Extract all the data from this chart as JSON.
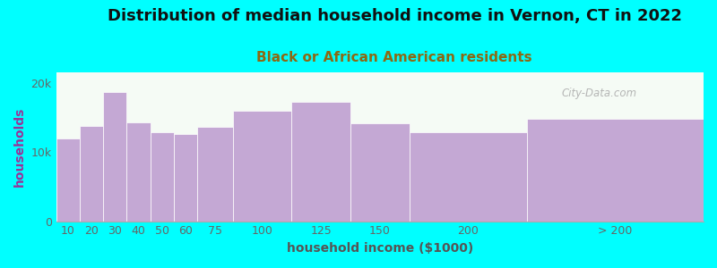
{
  "title": "Distribution of median household income in Vernon, CT in 2022",
  "subtitle": "Black or African American residents",
  "xlabel": "household income ($1000)",
  "ylabel": "households",
  "background_color": "#00FFFF",
  "bar_color": "#C4A8D4",
  "categories": [
    "10",
    "20",
    "30",
    "40",
    "50",
    "60",
    "75",
    "100",
    "125",
    "150",
    "200",
    "> 200"
  ],
  "left_edges": [
    0,
    10,
    20,
    30,
    40,
    50,
    60,
    75,
    100,
    125,
    150,
    200
  ],
  "widths": [
    10,
    10,
    10,
    10,
    10,
    10,
    15,
    25,
    25,
    25,
    50,
    75
  ],
  "values": [
    12000,
    13800,
    18700,
    14300,
    12800,
    12600,
    13600,
    16000,
    17200,
    14200,
    12900,
    14800
  ],
  "yticks": [
    0,
    10000,
    20000
  ],
  "ytick_labels": [
    "0",
    "10k",
    "20k"
  ],
  "ylim": [
    0,
    21500
  ],
  "xlim": [
    0,
    275
  ],
  "title_fontsize": 13,
  "subtitle_fontsize": 11,
  "axis_label_fontsize": 10,
  "tick_fontsize": 9,
  "watermark_text": "City-Data.com"
}
